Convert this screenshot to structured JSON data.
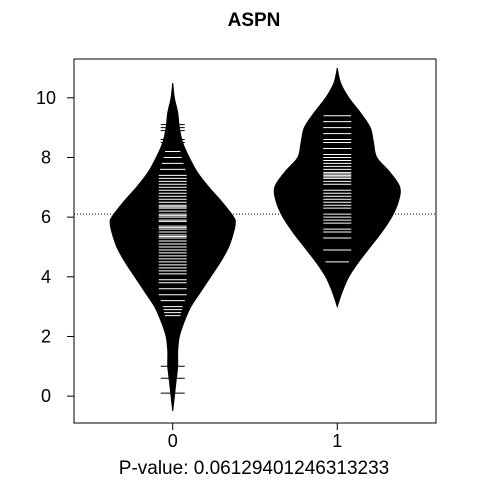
{
  "chart_data": {
    "type": "beanplot",
    "title": "ASPN",
    "xlabel": "P-value: 0.06129401246313233",
    "ylabel": "",
    "categories": [
      "0",
      "1"
    ],
    "yticks": [
      "0",
      "2",
      "4",
      "6",
      "8",
      "10"
    ],
    "ylim": [
      -0.9,
      11.3
    ],
    "xlim": [
      -0.6,
      1.6
    ],
    "overall_mean": 6.1,
    "grid": false,
    "legend": "none",
    "beans": [
      {
        "name": "0",
        "group_mean": 5.8,
        "density_y": [
          -0.5,
          0.0,
          0.5,
          1.0,
          1.5,
          2.0,
          2.5,
          3.0,
          3.5,
          4.0,
          4.5,
          5.0,
          5.5,
          5.8,
          6.0,
          6.5,
          7.0,
          7.5,
          8.0,
          8.5,
          9.0,
          9.5,
          10.0,
          10.5
        ],
        "density_w": [
          0.0,
          0.01,
          0.02,
          0.03,
          0.03,
          0.04,
          0.07,
          0.11,
          0.17,
          0.23,
          0.29,
          0.34,
          0.37,
          0.38,
          0.37,
          0.3,
          0.22,
          0.15,
          0.1,
          0.06,
          0.04,
          0.03,
          0.01,
          0.0
        ],
        "observations": [
          0.1,
          0.6,
          1.0,
          2.7,
          2.8,
          2.9,
          3.0,
          3.2,
          3.4,
          3.6,
          3.8,
          3.9,
          4.1,
          4.2,
          4.3,
          4.4,
          4.5,
          4.6,
          4.7,
          4.8,
          4.9,
          5.0,
          5.1,
          5.2,
          5.3,
          5.35,
          5.4,
          5.5,
          5.6,
          5.65,
          5.7,
          5.8,
          5.85,
          5.9,
          6.0,
          6.05,
          6.1,
          6.2,
          6.3,
          6.35,
          6.4,
          6.5,
          6.6,
          6.7,
          6.8,
          6.9,
          7.0,
          7.1,
          7.2,
          7.3,
          7.4,
          7.6,
          7.8,
          8.0,
          8.2,
          8.5,
          8.6,
          8.9,
          9.0,
          9.1
        ]
      },
      {
        "name": "1",
        "group_mean": 7.0,
        "density_y": [
          3.0,
          3.5,
          4.0,
          4.5,
          5.0,
          5.5,
          6.0,
          6.5,
          7.0,
          7.5,
          8.0,
          8.5,
          9.0,
          9.5,
          10.0,
          10.5,
          11.0
        ],
        "density_w": [
          0.0,
          0.03,
          0.07,
          0.13,
          0.2,
          0.27,
          0.33,
          0.37,
          0.38,
          0.32,
          0.24,
          0.22,
          0.2,
          0.14,
          0.07,
          0.02,
          0.0
        ],
        "observations": [
          4.5,
          4.9,
          5.3,
          5.5,
          5.6,
          5.8,
          5.9,
          6.0,
          6.1,
          6.3,
          6.4,
          6.5,
          6.6,
          6.7,
          6.8,
          6.9,
          7.0,
          7.1,
          7.2,
          7.3,
          7.35,
          7.4,
          7.45,
          7.5,
          7.6,
          7.7,
          7.8,
          7.9,
          8.0,
          8.1,
          8.3,
          8.5,
          8.6,
          8.8,
          9.0,
          9.2,
          9.4
        ]
      }
    ]
  }
}
